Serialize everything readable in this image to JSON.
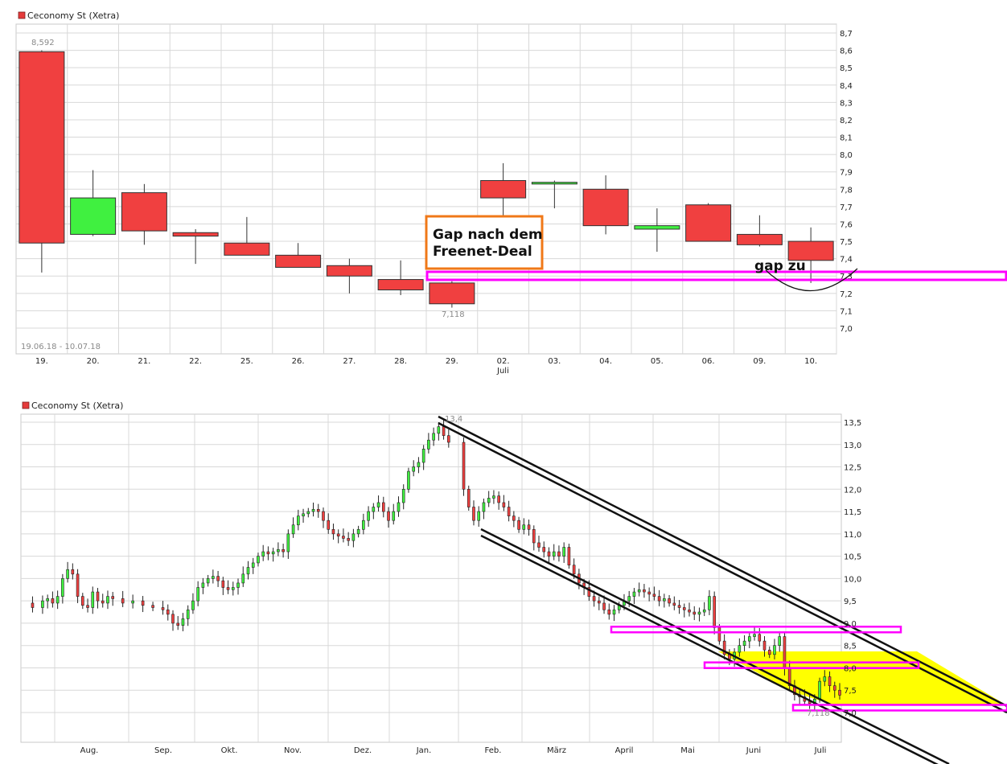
{
  "colors": {
    "up": "#40f040",
    "down": "#f04040",
    "grid": "#d8d8d8",
    "axis_text": "#222222",
    "label_gray": "#8a8a8a",
    "annotation_orange": "#f07818",
    "annotation_magenta": "#ff00ff",
    "highlight_yellow": "#ffff00"
  },
  "chart_data": [
    {
      "type": "candlestick",
      "title": "Ceconomy St (Xetra)",
      "date_range_label": "19.06.18 - 10.07.18",
      "month_label": "Juli",
      "ylim": [
        6.9,
        8.75
      ],
      "yticks": [
        "7,0",
        "7,1",
        "7,2",
        "7,3",
        "7,4",
        "7,5",
        "7,6",
        "7,7",
        "7,8",
        "7,9",
        "8,0",
        "8,1",
        "8,2",
        "8,3",
        "8,4",
        "8,5",
        "8,6",
        "8,7"
      ],
      "ytick_values": [
        7.0,
        7.1,
        7.2,
        7.3,
        7.4,
        7.5,
        7.6,
        7.7,
        7.8,
        7.9,
        8.0,
        8.1,
        8.2,
        8.3,
        8.4,
        8.5,
        8.6,
        8.7
      ],
      "max_label": "8,592",
      "min_label": "7,118",
      "candles": [
        {
          "date": "19.",
          "open": 8.592,
          "high": 8.6,
          "low": 7.32,
          "close": 7.49
        },
        {
          "date": "20.",
          "open": 7.54,
          "high": 7.91,
          "low": 7.53,
          "close": 7.75
        },
        {
          "date": "21.",
          "open": 7.78,
          "high": 7.83,
          "low": 7.48,
          "close": 7.56
        },
        {
          "date": "22.",
          "open": 7.55,
          "high": 7.57,
          "low": 7.37,
          "close": 7.53
        },
        {
          "date": "25.",
          "open": 7.49,
          "high": 7.64,
          "low": 7.42,
          "close": 7.42
        },
        {
          "date": "26.",
          "open": 7.42,
          "high": 7.49,
          "low": 7.35,
          "close": 7.35
        },
        {
          "date": "27.",
          "open": 7.36,
          "high": 7.4,
          "low": 7.2,
          "close": 7.3
        },
        {
          "date": "28.",
          "open": 7.28,
          "high": 7.39,
          "low": 7.19,
          "close": 7.22
        },
        {
          "date": "29.",
          "open": 7.26,
          "high": 7.27,
          "low": 7.118,
          "close": 7.14
        },
        {
          "date": "02.",
          "open": 7.85,
          "high": 7.95,
          "low": 7.61,
          "close": 7.75
        },
        {
          "date": "03.",
          "open": 7.83,
          "high": 7.85,
          "low": 7.69,
          "close": 7.84
        },
        {
          "date": "04.",
          "open": 7.8,
          "high": 7.88,
          "low": 7.54,
          "close": 7.59
        },
        {
          "date": "05.",
          "open": 7.57,
          "high": 7.69,
          "low": 7.44,
          "close": 7.59
        },
        {
          "date": "06.",
          "open": 7.71,
          "high": 7.72,
          "low": 7.5,
          "close": 7.5
        },
        {
          "date": "09.",
          "open": 7.54,
          "high": 7.65,
          "low": 7.47,
          "close": 7.48
        },
        {
          "date": "10.",
          "open": 7.5,
          "high": 7.58,
          "low": 7.26,
          "close": 7.39
        }
      ],
      "annotations": {
        "gap_box_text": [
          "Gap nach dem",
          "Freenet-Deal"
        ],
        "gap_zu_text": "gap zu",
        "gap_band": [
          7.25,
          7.3
        ]
      }
    },
    {
      "type": "candlestick",
      "title": "Ceconomy St (Xetra)",
      "ylim": [
        6.7,
        13.6
      ],
      "yticks": [
        "7,0",
        "7,5",
        "8,0",
        "8,5",
        "9,0",
        "9,5",
        "10,0",
        "10,5",
        "11,0",
        "11,5",
        "12,0",
        "12,5",
        "13,0",
        "13,5"
      ],
      "ytick_values": [
        7.0,
        7.5,
        8.0,
        8.5,
        9.0,
        9.5,
        10.0,
        10.5,
        11.0,
        11.5,
        12.0,
        12.5,
        13.0,
        13.5
      ],
      "xticks": [
        "Aug.",
        "Sep.",
        "Okt.",
        "Nov.",
        "Dez.",
        "Jan.",
        "Feb.",
        "März",
        "April",
        "Mai",
        "Juni",
        "Juli"
      ],
      "max_label": "13,4",
      "min_label": "7,118",
      "close_path": [
        [
          0,
          9.45
        ],
        [
          4,
          9.35
        ],
        [
          8,
          9.5
        ],
        [
          10,
          9.55
        ],
        [
          12,
          9.45
        ],
        [
          14,
          9.6
        ],
        [
          16,
          10.0
        ],
        [
          18,
          10.2
        ],
        [
          20,
          10.1
        ],
        [
          22,
          9.6
        ],
        [
          24,
          9.4
        ],
        [
          26,
          9.35
        ],
        [
          28,
          9.7
        ],
        [
          30,
          9.5
        ],
        [
          32,
          9.45
        ],
        [
          34,
          9.6
        ],
        [
          36,
          9.55
        ],
        [
          40,
          9.45
        ],
        [
          44,
          9.5
        ],
        [
          48,
          9.4
        ],
        [
          52,
          9.35
        ],
        [
          56,
          9.3
        ],
        [
          58,
          9.2
        ],
        [
          60,
          9.0
        ],
        [
          62,
          8.95
        ],
        [
          64,
          9.1
        ],
        [
          66,
          9.3
        ],
        [
          68,
          9.5
        ],
        [
          70,
          9.8
        ],
        [
          72,
          9.9
        ],
        [
          74,
          10.0
        ],
        [
          76,
          10.05
        ],
        [
          78,
          9.95
        ],
        [
          80,
          9.8
        ],
        [
          82,
          9.75
        ],
        [
          84,
          9.8
        ],
        [
          86,
          9.9
        ],
        [
          88,
          10.1
        ],
        [
          90,
          10.25
        ],
        [
          92,
          10.35
        ],
        [
          94,
          10.5
        ],
        [
          96,
          10.6
        ],
        [
          98,
          10.55
        ],
        [
          100,
          10.6
        ],
        [
          102,
          10.65
        ],
        [
          104,
          10.6
        ],
        [
          106,
          11.0
        ],
        [
          108,
          11.2
        ],
        [
          110,
          11.4
        ],
        [
          112,
          11.45
        ],
        [
          114,
          11.5
        ],
        [
          116,
          11.55
        ],
        [
          118,
          11.5
        ],
        [
          120,
          11.3
        ],
        [
          122,
          11.1
        ],
        [
          124,
          11.0
        ],
        [
          126,
          10.95
        ],
        [
          128,
          10.9
        ],
        [
          130,
          10.85
        ],
        [
          132,
          11.0
        ],
        [
          134,
          11.1
        ],
        [
          136,
          11.3
        ],
        [
          138,
          11.5
        ],
        [
          140,
          11.6
        ],
        [
          142,
          11.7
        ],
        [
          144,
          11.5
        ],
        [
          146,
          11.3
        ],
        [
          148,
          11.5
        ],
        [
          150,
          11.7
        ],
        [
          152,
          12.0
        ],
        [
          154,
          12.4
        ],
        [
          156,
          12.5
        ],
        [
          158,
          12.6
        ],
        [
          160,
          12.9
        ],
        [
          162,
          13.1
        ],
        [
          164,
          13.25
        ],
        [
          166,
          13.4
        ],
        [
          168,
          13.2
        ],
        [
          170,
          13.05
        ],
        [
          176,
          12.0
        ],
        [
          178,
          11.6
        ],
        [
          180,
          11.3
        ],
        [
          182,
          11.5
        ],
        [
          184,
          11.7
        ],
        [
          186,
          11.8
        ],
        [
          188,
          11.85
        ],
        [
          190,
          11.7
        ],
        [
          192,
          11.6
        ],
        [
          194,
          11.4
        ],
        [
          196,
          11.3
        ],
        [
          198,
          11.1
        ],
        [
          200,
          11.2
        ],
        [
          202,
          11.1
        ],
        [
          204,
          10.8
        ],
        [
          206,
          10.7
        ],
        [
          208,
          10.6
        ],
        [
          210,
          10.5
        ],
        [
          212,
          10.6
        ],
        [
          214,
          10.5
        ],
        [
          216,
          10.7
        ],
        [
          218,
          10.3
        ],
        [
          220,
          10.1
        ],
        [
          222,
          9.9
        ],
        [
          224,
          9.8
        ],
        [
          226,
          9.6
        ],
        [
          228,
          9.5
        ],
        [
          230,
          9.45
        ],
        [
          232,
          9.3
        ],
        [
          234,
          9.2
        ],
        [
          236,
          9.3
        ],
        [
          238,
          9.4
        ],
        [
          240,
          9.5
        ],
        [
          242,
          9.6
        ],
        [
          244,
          9.7
        ],
        [
          246,
          9.75
        ],
        [
          248,
          9.7
        ],
        [
          250,
          9.65
        ],
        [
          252,
          9.6
        ],
        [
          254,
          9.5
        ],
        [
          256,
          9.55
        ],
        [
          258,
          9.45
        ],
        [
          260,
          9.4
        ],
        [
          262,
          9.35
        ],
        [
          264,
          9.3
        ],
        [
          266,
          9.25
        ],
        [
          268,
          9.2
        ],
        [
          270,
          9.25
        ],
        [
          272,
          9.3
        ],
        [
          274,
          9.6
        ],
        [
          276,
          8.9
        ],
        [
          278,
          8.6
        ],
        [
          280,
          8.3
        ],
        [
          282,
          8.2
        ],
        [
          284,
          8.35
        ],
        [
          286,
          8.5
        ],
        [
          288,
          8.6
        ],
        [
          290,
          8.7
        ],
        [
          292,
          8.75
        ],
        [
          294,
          8.6
        ],
        [
          296,
          8.4
        ],
        [
          298,
          8.3
        ],
        [
          300,
          8.5
        ],
        [
          302,
          8.7
        ],
        [
          304,
          8.0
        ],
        [
          306,
          7.6
        ],
        [
          308,
          7.4
        ],
        [
          310,
          7.35
        ],
        [
          312,
          7.25
        ],
        [
          314,
          7.2
        ],
        [
          316,
          7.3
        ],
        [
          318,
          7.7
        ],
        [
          320,
          7.8
        ],
        [
          322,
          7.6
        ],
        [
          324,
          7.5
        ],
        [
          326,
          7.39
        ]
      ],
      "channels": {
        "upper_start": [
          "Jan.",
          13.6
        ],
        "upper_end_value": 7.1,
        "lower_start": [
          "Feb.",
          10.55
        ],
        "lower_end_value": 6.6
      },
      "support_bands": [
        8.85,
        8.05,
        7.1
      ]
    }
  ]
}
